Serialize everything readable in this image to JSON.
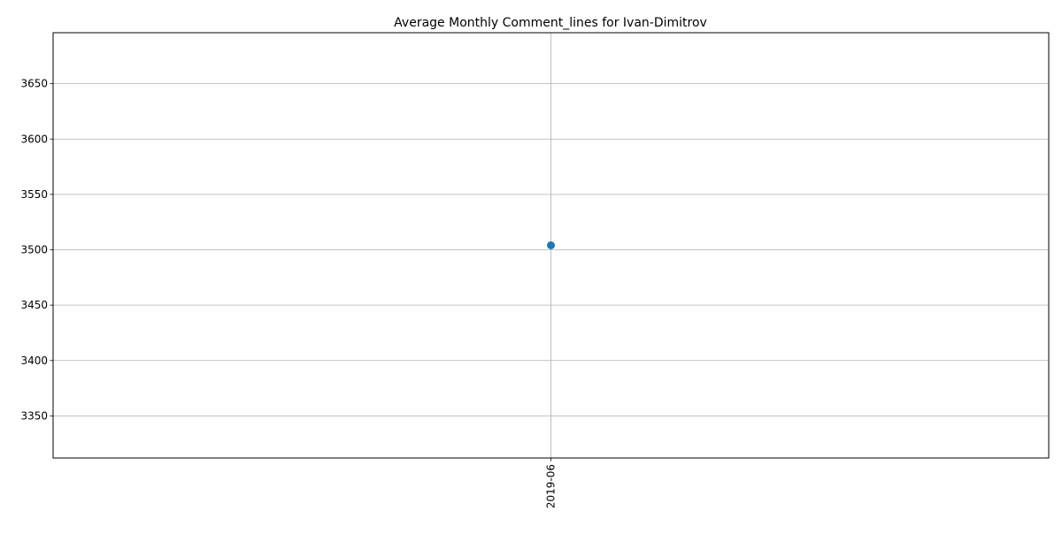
{
  "chart_data": {
    "type": "line",
    "title": "Average Monthly Comment_lines for Ivan-Dimitrov",
    "xlabel": "",
    "ylabel": "",
    "categories": [
      "2019-06"
    ],
    "series": [
      {
        "values": [
          3504
        ],
        "color": "#1f77b4"
      }
    ],
    "ylim": [
      3312,
      3696
    ],
    "yticks": [
      3350,
      3400,
      3450,
      3500,
      3550,
      3600,
      3650
    ],
    "grid": true,
    "legend": "none",
    "marker": "circle",
    "x_tick_rotation": "vertical"
  }
}
